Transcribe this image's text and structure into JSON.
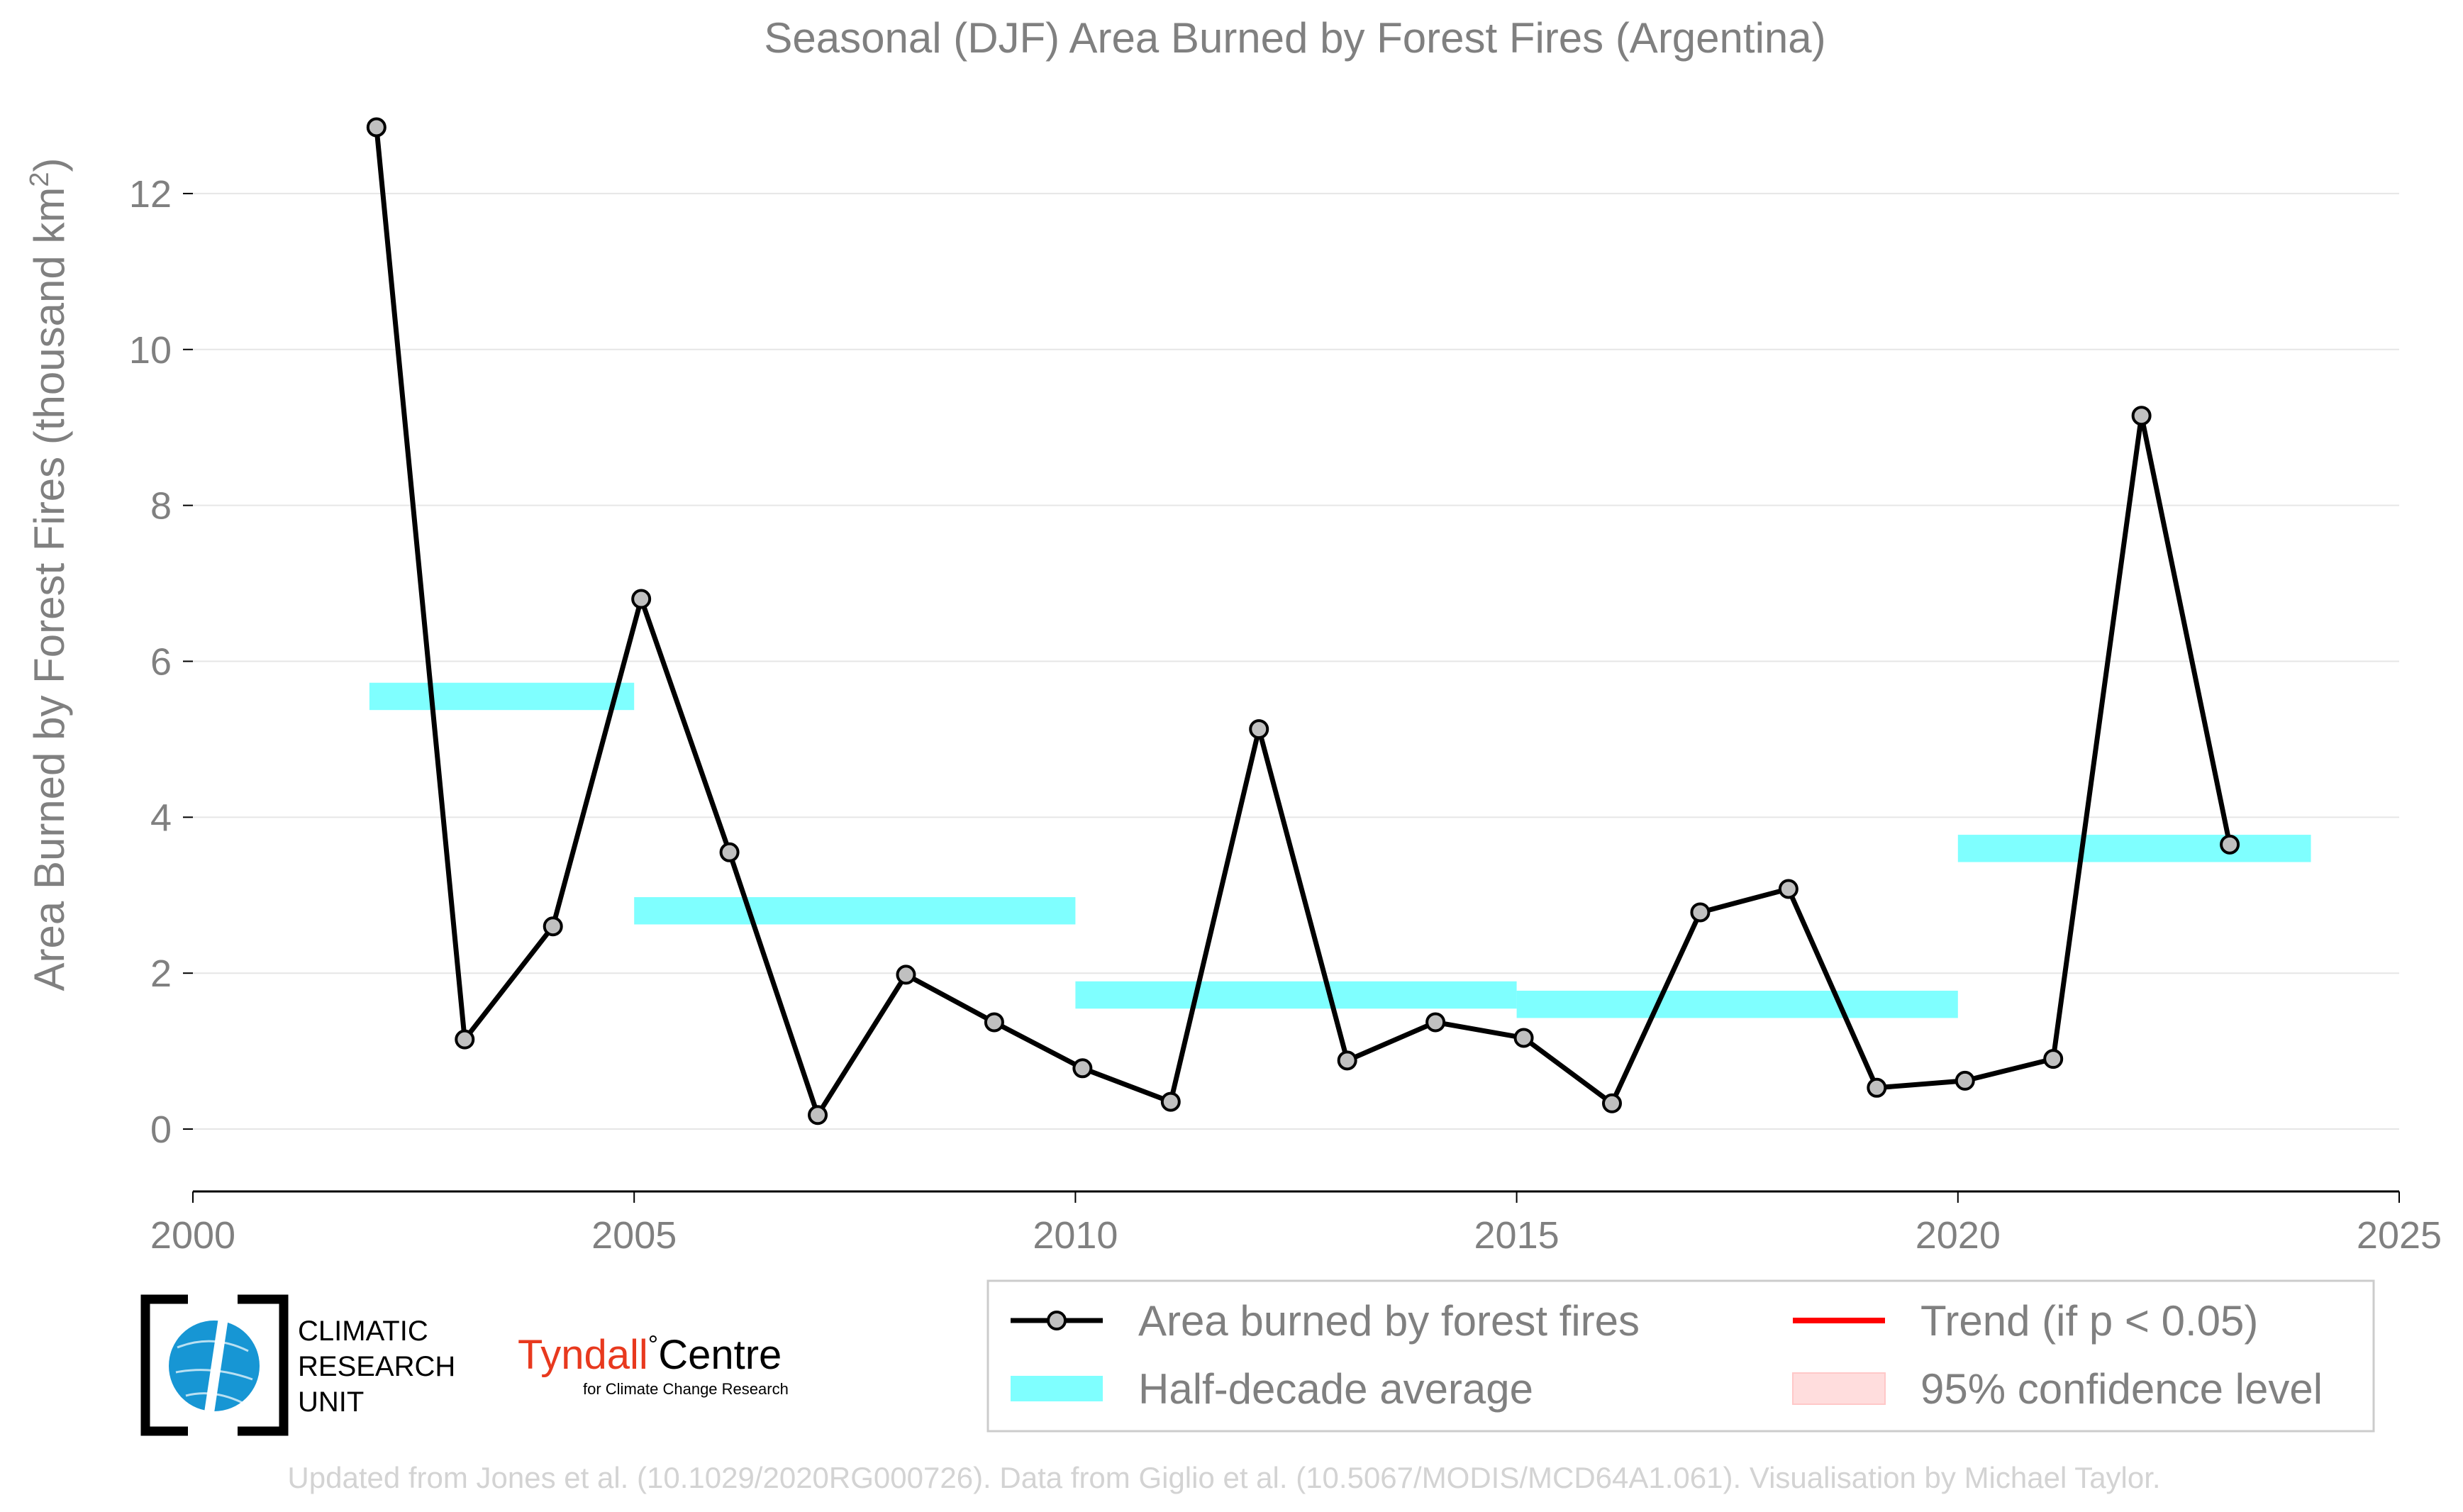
{
  "chart_data": {
    "type": "line",
    "title": "Seasonal (DJF) Area Burned by Forest Fires (Argentina)",
    "xlabel": "",
    "ylabel": "Area Burned by Forest Fires (thousand km",
    "ylabel_superscript": "2",
    "ylabel_close": ")",
    "xlim": [
      2000,
      2025
    ],
    "ylim": [
      -0.8,
      13.3
    ],
    "x_ticks": [
      "2000",
      "2005",
      "2010",
      "2015",
      "2020",
      "2025"
    ],
    "y_ticks": [
      "0",
      "2",
      "4",
      "6",
      "8",
      "10",
      "12"
    ],
    "grid": "horizontal",
    "legend_position": "bottom-right",
    "series": [
      {
        "name": "Area burned by forest fires",
        "style": "line-markers",
        "color": "#000000",
        "marker_fill": "#c0c0c0",
        "x": [
          2002,
          2003,
          2004,
          2005,
          2006,
          2007,
          2008,
          2009,
          2010,
          2011,
          2012,
          2013,
          2014,
          2015,
          2016,
          2017,
          2018,
          2019,
          2020,
          2021,
          2022,
          2023
        ],
        "y": [
          12.85,
          1.15,
          2.6,
          6.8,
          3.55,
          0.18,
          1.98,
          1.37,
          0.78,
          0.35,
          5.13,
          0.88,
          1.37,
          1.17,
          0.33,
          2.78,
          3.08,
          0.53,
          0.62,
          0.9,
          9.15,
          3.65
        ]
      },
      {
        "name": "Half-decade average",
        "style": "bars-horizontal",
        "color": "#7fffff",
        "segments": [
          {
            "x0": 2002,
            "x1": 2005,
            "y": 5.55
          },
          {
            "x0": 2005,
            "x1": 2010,
            "y": 2.8
          },
          {
            "x0": 2010,
            "x1": 2015,
            "y": 1.72
          },
          {
            "x0": 2015,
            "x1": 2020,
            "y": 1.6
          },
          {
            "x0": 2020,
            "x1": 2024,
            "y": 3.6
          }
        ]
      }
    ],
    "legend": [
      {
        "label": "Area burned by forest fires",
        "kind": "line-marker",
        "color": "#000000"
      },
      {
        "label": "Trend (if p < 0.05)",
        "kind": "line",
        "color": "#ff0000"
      },
      {
        "label": "Half-decade average",
        "kind": "band",
        "color": "#7fffff"
      },
      {
        "label": "95% confidence level",
        "kind": "patch",
        "color": "#ffdddd"
      }
    ]
  },
  "logos": {
    "cru_line1": "CLIMATIC",
    "cru_line2": "RESEARCH",
    "cru_line3": "UNIT",
    "tyndall_main": "Tyndall",
    "tyndall_degree": "°",
    "tyndall_centre": "Centre",
    "tyndall_sub": "for Climate Change Research"
  },
  "credit": "Updated from Jones et al. (10.1029/2020RG000726). Data from Giglio et al. (10.5067/MODIS/MCD64A1.061). Visualisation by Michael Taylor."
}
